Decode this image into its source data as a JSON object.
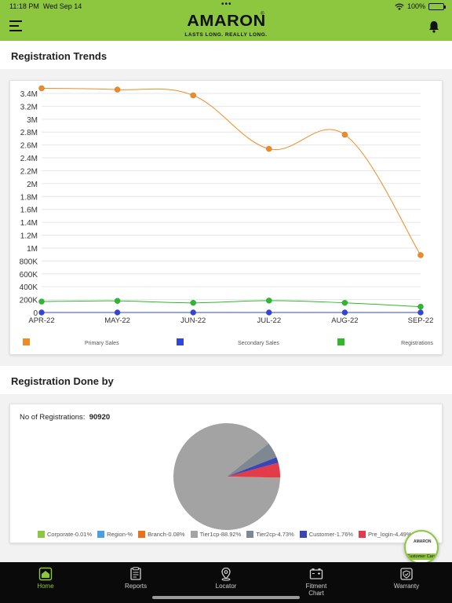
{
  "status_bar": {
    "time": "11:18 PM",
    "date": "Wed Sep 14",
    "battery": "100%",
    "battery_level": 1.0
  },
  "brand": {
    "logo_text": "AMARON",
    "tagline": "LASTS LONG. REALLY LONG.",
    "accent": "#8dc63f"
  },
  "sections": {
    "trends_title": "Registration Trends",
    "done_by_title": "Registration Done by"
  },
  "chart_data": [
    {
      "type": "line",
      "categories": [
        "APR-22",
        "MAY-22",
        "JUN-22",
        "JUL-22",
        "AUG-22",
        "SEP-22"
      ],
      "y_ticks": [
        "0",
        "200K",
        "400K",
        "600K",
        "800K",
        "1M",
        "1.2M",
        "1.4M",
        "1.6M",
        "1.8M",
        "2M",
        "2.2M",
        "2.4M",
        "2.6M",
        "2.8M",
        "3M",
        "3.2M",
        "3.4M"
      ],
      "ylim": [
        0,
        3400000
      ],
      "grid": true,
      "legend_position": "bottom",
      "series": [
        {
          "name": "Primary Sales",
          "color": "#f08a24",
          "values": [
            3480000,
            3460000,
            3370000,
            2540000,
            2760000,
            890000
          ]
        },
        {
          "name": "Secondary Sales",
          "color": "#3344dd",
          "values": [
            0,
            0,
            0,
            0,
            0,
            0
          ]
        },
        {
          "name": "Registrations",
          "color": "#2db82d",
          "values": [
            170000,
            180000,
            150000,
            185000,
            150000,
            90000
          ]
        }
      ]
    },
    {
      "type": "pie",
      "summary_label": "No of Registrations:",
      "summary_value": "90920",
      "slices": [
        {
          "label": "Corporate-0.01%",
          "value": 0.01,
          "color": "#8dc63f"
        },
        {
          "label": "Region-%",
          "value": 0,
          "color": "#4a9fe0"
        },
        {
          "label": "Branch-0.08%",
          "value": 0.08,
          "color": "#e8711c"
        },
        {
          "label": "Tier1cp-88.92%",
          "value": 88.92,
          "color": "#a3a3a3"
        },
        {
          "label": "Tier2cp-4.73%",
          "value": 4.73,
          "color": "#7f8790"
        },
        {
          "label": "Customer-1.76%",
          "value": 1.76,
          "color": "#3a45b5"
        },
        {
          "label": "Pre_login-4.49%",
          "value": 4.49,
          "color": "#e23b4a"
        }
      ]
    }
  ],
  "customer_care": {
    "label": "Customer Care",
    "logo": "AMARON"
  },
  "tabbar": {
    "items": [
      {
        "label": "Home",
        "icon": "home-icon"
      },
      {
        "label": "Reports",
        "icon": "reports-icon"
      },
      {
        "label": "Locator",
        "icon": "locator-icon"
      },
      {
        "label": "Fitment Chart",
        "icon": "battery-icon"
      },
      {
        "label": "Warranty",
        "icon": "warranty-icon"
      }
    ]
  }
}
